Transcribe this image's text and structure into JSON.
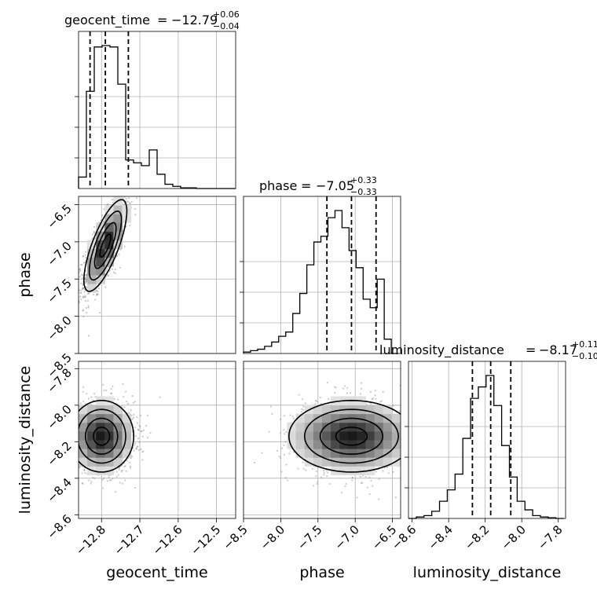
{
  "chart_data": {
    "type": "corner",
    "parameters": [
      "geocent_time",
      "phase",
      "luminosity_distance"
    ],
    "axis_labels": {
      "geocent_time": "geocent_time",
      "phase": "phase",
      "luminosity_distance": "luminosity_distance"
    },
    "titles": [
      {
        "name": "geocent_time",
        "median": "−12.79",
        "plus": "+0.06",
        "minus": "−0.04"
      },
      {
        "name": "phase",
        "median": "−7.05",
        "plus": "+0.33",
        "minus": "−0.33"
      },
      {
        "name": "luminosity_distance",
        "median": "−8.17",
        "plus": "+0.11",
        "minus": "−0.10"
      }
    ],
    "ranges": {
      "geocent_time": [
        -12.86,
        -12.45
      ],
      "phase": [
        -8.5,
        -6.39
      ],
      "luminosity_distance": [
        -8.62,
        -7.76
      ]
    },
    "ticks": {
      "geocent_time": {
        "values": [
          -12.8,
          -12.7,
          -12.6,
          -12.5
        ],
        "labels": [
          "−12.8",
          "−12.7",
          "−12.6",
          "−12.5"
        ]
      },
      "phase_x": {
        "values": [
          -8.5,
          -8.0,
          -7.5,
          -7.0,
          -6.5
        ],
        "labels": [
          "−8.5",
          "−8.0",
          "−7.5",
          "−7.0",
          "−6.5"
        ]
      },
      "phase_y": {
        "values": [
          -8.5,
          -8.0,
          -7.5,
          -7.0,
          -6.5
        ],
        "labels": [
          "−8.5",
          "−8.0",
          "−7.5",
          "−7.0",
          "−6.5"
        ]
      },
      "luminosity_distance_x": {
        "values": [
          -8.6,
          -8.4,
          -8.2,
          -8.0,
          -7.8
        ],
        "labels": [
          "−8.6",
          "−8.4",
          "−8.2",
          "−8.0",
          "−7.8"
        ]
      },
      "luminosity_distance_y": {
        "values": [
          -8.6,
          -8.4,
          -8.2,
          -8.0,
          -7.8
        ],
        "labels": [
          "−8.6",
          "−8.4",
          "−8.2",
          "−8.0",
          "−7.8"
        ]
      }
    },
    "histograms": {
      "geocent_time": {
        "edges": [
          -12.86,
          -12.8395,
          -12.819,
          -12.7985,
          -12.778,
          -12.7575,
          -12.737,
          -12.7165,
          -12.696,
          -12.6755,
          -12.655,
          -12.6345,
          -12.614,
          -12.5935,
          -12.573,
          -12.5525,
          -12.532,
          -12.5115,
          -12.491,
          -12.4705,
          -12.45
        ],
        "counts": [
          0.08,
          0.68,
          0.99,
          1.0,
          0.99,
          0.73,
          0.2,
          0.18,
          0.16,
          0.27,
          0.1,
          0.03,
          0.015,
          0.005,
          0.005,
          0.0,
          0.0,
          0.0,
          0.0,
          0.0
        ],
        "quantiles": [
          -12.83,
          -12.79,
          -12.73
        ]
      },
      "phase": {
        "edges": [
          -8.5,
          -8.4055,
          -8.311,
          -8.2165,
          -8.122,
          -8.0275,
          -7.933,
          -7.8385,
          -7.744,
          -7.6495,
          -7.555,
          -7.4605,
          -7.366,
          -7.2715,
          -7.177,
          -7.0825,
          -6.988,
          -6.8935,
          -6.799,
          -6.7045,
          -6.61,
          -6.5155,
          -6.421
        ],
        "counts": [
          0.01,
          0.02,
          0.03,
          0.05,
          0.08,
          0.12,
          0.15,
          0.28,
          0.42,
          0.62,
          0.78,
          0.82,
          0.95,
          1.0,
          0.88,
          0.72,
          0.6,
          0.38,
          0.32,
          0.52,
          0.1,
          0.0
        ],
        "quantiles": [
          -7.38,
          -7.05,
          -6.72
        ]
      },
      "luminosity_distance": {
        "edges": [
          -8.62,
          -8.5775,
          -8.535,
          -8.4925,
          -8.45,
          -8.4075,
          -8.365,
          -8.3225,
          -8.28,
          -8.2375,
          -8.195,
          -8.1525,
          -8.11,
          -8.0675,
          -8.025,
          -7.9825,
          -7.94,
          -7.8975,
          -7.855,
          -7.8125,
          -7.77
        ],
        "counts": [
          0.0,
          0.01,
          0.02,
          0.05,
          0.12,
          0.2,
          0.31,
          0.56,
          0.84,
          0.92,
          1.0,
          0.79,
          0.51,
          0.29,
          0.12,
          0.06,
          0.02,
          0.01,
          0.005,
          0.0
        ],
        "quantiles": [
          -8.27,
          -8.17,
          -8.06
        ]
      }
    },
    "joint": [
      {
        "x": "geocent_time",
        "y": "phase",
        "center": [
          -12.79,
          -7.05
        ],
        "sigma": [
          0.02,
          0.22
        ],
        "tilt": 0.75
      },
      {
        "x": "geocent_time",
        "y": "luminosity_distance",
        "center": [
          -12.8,
          -8.17
        ],
        "sigma": [
          0.03,
          0.07
        ],
        "tilt": 0.0
      },
      {
        "x": "phase",
        "y": "luminosity_distance",
        "center": [
          -7.05,
          -8.17
        ],
        "sigma": [
          0.3,
          0.07
        ],
        "tilt": 0.0
      }
    ],
    "grid": true,
    "quantile_lines": "dashed"
  }
}
